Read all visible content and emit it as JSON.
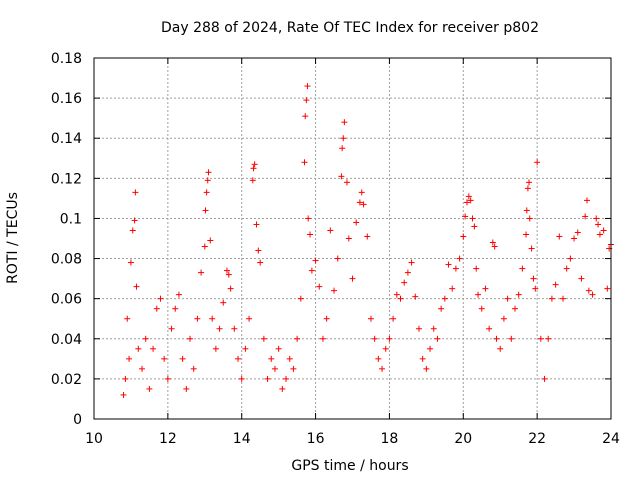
{
  "chart_data": {
    "type": "scatter",
    "title": "Day 288 of 2024, Rate Of TEC Index for receiver p802",
    "xlabel": "GPS time / hours",
    "ylabel": "ROTI / TECUs",
    "xlim": [
      10,
      24
    ],
    "ylim": [
      0,
      0.18
    ],
    "xticks": [
      10,
      12,
      14,
      16,
      18,
      20,
      22,
      24
    ],
    "xtick_labels": [
      "10",
      "12",
      "14",
      "16",
      "18",
      "20",
      "22",
      "24"
    ],
    "yticks": [
      0,
      0.02,
      0.04,
      0.06,
      0.08,
      0.1,
      0.12,
      0.14,
      0.16,
      0.18
    ],
    "ytick_labels": [
      "0",
      "0.02",
      "0.04",
      "0.06",
      "0.08",
      "0.1",
      "0.12",
      "0.14",
      "0.16",
      "0.18"
    ],
    "grid": true,
    "marker": "+",
    "color": "#ff0000",
    "series": [
      {
        "name": "ROTI",
        "points": [
          [
            10.8,
            0.012
          ],
          [
            10.85,
            0.02
          ],
          [
            10.9,
            0.05
          ],
          [
            10.95,
            0.03
          ],
          [
            11.0,
            0.078
          ],
          [
            11.05,
            0.094
          ],
          [
            11.1,
            0.099
          ],
          [
            11.12,
            0.113
          ],
          [
            11.15,
            0.066
          ],
          [
            11.2,
            0.035
          ],
          [
            11.3,
            0.025
          ],
          [
            11.4,
            0.04
          ],
          [
            11.5,
            0.015
          ],
          [
            11.6,
            0.035
          ],
          [
            11.7,
            0.055
          ],
          [
            11.8,
            0.06
          ],
          [
            11.9,
            0.03
          ],
          [
            12.0,
            0.02
          ],
          [
            12.1,
            0.045
          ],
          [
            12.2,
            0.055
          ],
          [
            12.3,
            0.062
          ],
          [
            12.4,
            0.03
          ],
          [
            12.5,
            0.015
          ],
          [
            12.6,
            0.04
          ],
          [
            12.7,
            0.025
          ],
          [
            12.8,
            0.05
          ],
          [
            12.9,
            0.073
          ],
          [
            13.0,
            0.086
          ],
          [
            13.02,
            0.104
          ],
          [
            13.05,
            0.113
          ],
          [
            13.08,
            0.119
          ],
          [
            13.1,
            0.123
          ],
          [
            13.15,
            0.089
          ],
          [
            13.2,
            0.05
          ],
          [
            13.3,
            0.035
          ],
          [
            13.4,
            0.045
          ],
          [
            13.5,
            0.058
          ],
          [
            13.6,
            0.074
          ],
          [
            13.65,
            0.072
          ],
          [
            13.7,
            0.065
          ],
          [
            13.8,
            0.045
          ],
          [
            13.9,
            0.03
          ],
          [
            14.0,
            0.02
          ],
          [
            14.1,
            0.035
          ],
          [
            14.2,
            0.05
          ],
          [
            14.3,
            0.119
          ],
          [
            14.32,
            0.125
          ],
          [
            14.35,
            0.127
          ],
          [
            14.4,
            0.097
          ],
          [
            14.45,
            0.084
          ],
          [
            14.5,
            0.078
          ],
          [
            14.6,
            0.04
          ],
          [
            14.7,
            0.02
          ],
          [
            14.8,
            0.03
          ],
          [
            14.9,
            0.025
          ],
          [
            15.0,
            0.035
          ],
          [
            15.1,
            0.015
          ],
          [
            15.2,
            0.02
          ],
          [
            15.3,
            0.03
          ],
          [
            15.4,
            0.025
          ],
          [
            15.5,
            0.04
          ],
          [
            15.6,
            0.06
          ],
          [
            15.7,
            0.128
          ],
          [
            15.72,
            0.151
          ],
          [
            15.75,
            0.159
          ],
          [
            15.78,
            0.166
          ],
          [
            15.8,
            0.1
          ],
          [
            15.85,
            0.092
          ],
          [
            15.9,
            0.074
          ],
          [
            16.0,
            0.079
          ],
          [
            16.1,
            0.066
          ],
          [
            16.2,
            0.04
          ],
          [
            16.3,
            0.05
          ],
          [
            16.4,
            0.094
          ],
          [
            16.5,
            0.064
          ],
          [
            16.6,
            0.08
          ],
          [
            16.7,
            0.121
          ],
          [
            16.72,
            0.135
          ],
          [
            16.75,
            0.14
          ],
          [
            16.78,
            0.148
          ],
          [
            16.85,
            0.118
          ],
          [
            16.9,
            0.09
          ],
          [
            17.0,
            0.07
          ],
          [
            17.1,
            0.098
          ],
          [
            17.2,
            0.108
          ],
          [
            17.25,
            0.113
          ],
          [
            17.3,
            0.107
          ],
          [
            17.4,
            0.091
          ],
          [
            17.5,
            0.05
          ],
          [
            17.6,
            0.04
          ],
          [
            17.7,
            0.03
          ],
          [
            17.8,
            0.025
          ],
          [
            17.9,
            0.035
          ],
          [
            18.0,
            0.04
          ],
          [
            18.1,
            0.05
          ],
          [
            18.2,
            0.062
          ],
          [
            18.3,
            0.06
          ],
          [
            18.4,
            0.068
          ],
          [
            18.5,
            0.073
          ],
          [
            18.6,
            0.078
          ],
          [
            18.7,
            0.061
          ],
          [
            18.8,
            0.045
          ],
          [
            18.9,
            0.03
          ],
          [
            19.0,
            0.025
          ],
          [
            19.1,
            0.035
          ],
          [
            19.2,
            0.045
          ],
          [
            19.3,
            0.04
          ],
          [
            19.4,
            0.055
          ],
          [
            19.5,
            0.06
          ],
          [
            19.6,
            0.077
          ],
          [
            19.7,
            0.065
          ],
          [
            19.8,
            0.075
          ],
          [
            19.9,
            0.08
          ],
          [
            20.0,
            0.091
          ],
          [
            20.05,
            0.101
          ],
          [
            20.1,
            0.108
          ],
          [
            20.15,
            0.111
          ],
          [
            20.2,
            0.109
          ],
          [
            20.25,
            0.1
          ],
          [
            20.3,
            0.096
          ],
          [
            20.35,
            0.075
          ],
          [
            20.4,
            0.062
          ],
          [
            20.5,
            0.055
          ],
          [
            20.6,
            0.065
          ],
          [
            20.7,
            0.045
          ],
          [
            20.8,
            0.088
          ],
          [
            20.85,
            0.086
          ],
          [
            20.9,
            0.04
          ],
          [
            21.0,
            0.035
          ],
          [
            21.1,
            0.05
          ],
          [
            21.2,
            0.06
          ],
          [
            21.3,
            0.04
          ],
          [
            21.4,
            0.055
          ],
          [
            21.5,
            0.062
          ],
          [
            21.6,
            0.075
          ],
          [
            21.7,
            0.092
          ],
          [
            21.72,
            0.104
          ],
          [
            21.75,
            0.115
          ],
          [
            21.78,
            0.118
          ],
          [
            21.8,
            0.1
          ],
          [
            21.85,
            0.085
          ],
          [
            21.9,
            0.07
          ],
          [
            21.95,
            0.065
          ],
          [
            22.0,
            0.128
          ],
          [
            22.1,
            0.04
          ],
          [
            22.2,
            0.02
          ],
          [
            22.3,
            0.04
          ],
          [
            22.4,
            0.06
          ],
          [
            22.5,
            0.067
          ],
          [
            22.6,
            0.091
          ],
          [
            22.7,
            0.06
          ],
          [
            22.8,
            0.075
          ],
          [
            22.9,
            0.08
          ],
          [
            23.0,
            0.09
          ],
          [
            23.1,
            0.093
          ],
          [
            23.2,
            0.07
          ],
          [
            23.3,
            0.101
          ],
          [
            23.35,
            0.109
          ],
          [
            23.4,
            0.064
          ],
          [
            23.5,
            0.062
          ],
          [
            23.6,
            0.1
          ],
          [
            23.65,
            0.097
          ],
          [
            23.7,
            0.092
          ],
          [
            23.8,
            0.094
          ],
          [
            23.9,
            0.065
          ],
          [
            23.95,
            0.085
          ],
          [
            24.0,
            0.087
          ]
        ]
      }
    ]
  }
}
